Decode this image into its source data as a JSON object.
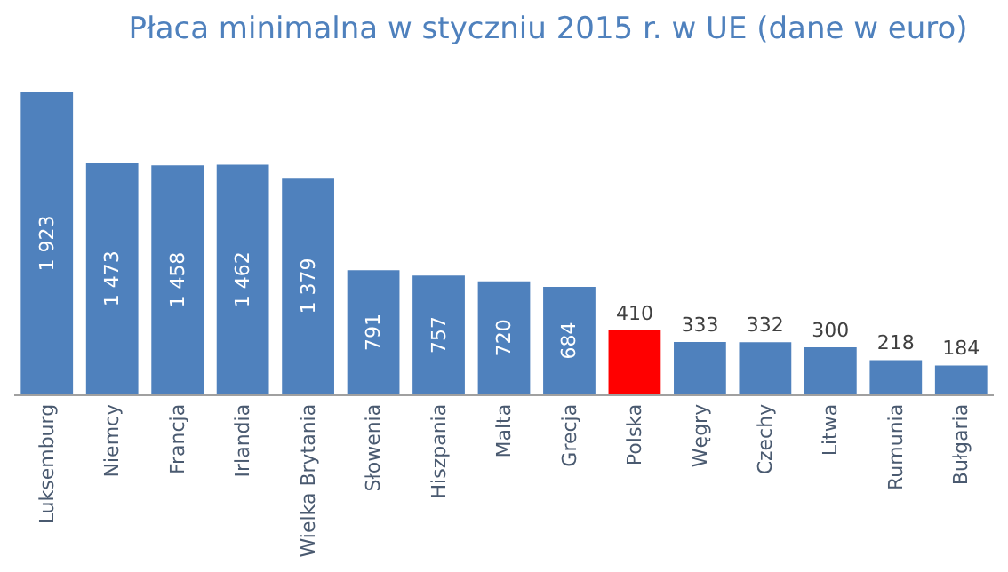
{
  "chart_data": {
    "type": "bar",
    "title": "Płaca minimalna w styczniu 2015 r. w UE (dane w euro)",
    "categories": [
      "Luksemburg",
      "Niemcy",
      "Francja",
      "Irlandia",
      "Wielka Brytania",
      "Słowenia",
      "Hiszpania",
      "Malta",
      "Grecja",
      "Polska",
      "Węgry",
      "Czechy",
      "Litwa",
      "Rumunia",
      "Bułgaria"
    ],
    "values": [
      1923,
      1473,
      1458,
      1462,
      1379,
      791,
      757,
      720,
      684,
      410,
      333,
      332,
      300,
      218,
      184
    ],
    "colors": [
      "#4f81bd",
      "#4f81bd",
      "#4f81bd",
      "#4f81bd",
      "#4f81bd",
      "#4f81bd",
      "#4f81bd",
      "#4f81bd",
      "#4f81bd",
      "#ff0000",
      "#4f81bd",
      "#4f81bd",
      "#4f81bd",
      "#4f81bd",
      "#4f81bd"
    ],
    "data_labels": true
  }
}
